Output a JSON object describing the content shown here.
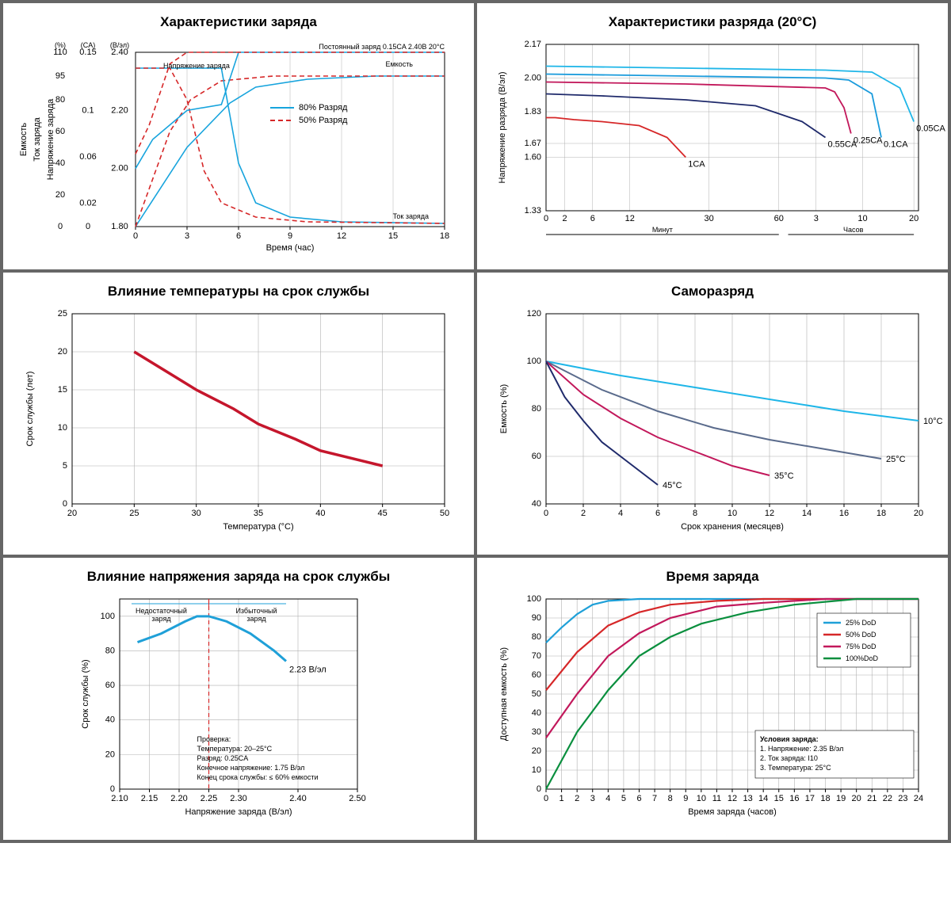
{
  "panels": {
    "charge": {
      "title": "Характеристики заряда",
      "rot_labels": [
        "Емкость",
        "Ток заряда",
        "Напряжение\nзаряда"
      ],
      "note": "Постоянный заряд 0.15CA 2.40В 20°C",
      "xlabel": "Время (час)",
      "xticks": [
        0,
        3,
        6,
        9,
        12,
        15,
        18
      ],
      "yticks_pct": [
        0,
        20,
        40,
        60,
        80,
        95,
        110
      ],
      "y_pct_unit": "(%)",
      "y_ca_unit": "(CA)",
      "y_v_unit": "(В/эл)",
      "yticks_ca": [
        0,
        0.02,
        0.06,
        0.1,
        0.15
      ],
      "yticks_v": [
        1.8,
        2.0,
        2.2,
        2.4
      ],
      "legend": [
        {
          "c": "#17a4dd",
          "dash": "0",
          "t": "80% Разряд"
        },
        {
          "c": "#d62728",
          "dash": "6,4",
          "t": "50% Разряд"
        }
      ],
      "ann": {
        "volt": "Напряжение\nзаряда",
        "cap": "Емкость",
        "cur": "Ток заряда"
      },
      "curves": {
        "cap80": {
          "c": "#17a4dd",
          "pts": [
            [
              0,
              0
            ],
            [
              3,
              50
            ],
            [
              5.5,
              78
            ],
            [
              7,
              88
            ],
            [
              10,
              93
            ],
            [
              14,
              95
            ],
            [
              18,
              95
            ]
          ]
        },
        "cap50": {
          "c": "#d62728",
          "dash": "6,4",
          "pts": [
            [
              0,
              0
            ],
            [
              2,
              60
            ],
            [
              3.2,
              80
            ],
            [
              5,
              92
            ],
            [
              8,
              95
            ],
            [
              18,
              95
            ]
          ]
        },
        "cur80": {
          "c": "#17a4dd",
          "pts": [
            [
              0,
              100
            ],
            [
              3,
              100
            ],
            [
              5,
              100
            ],
            [
              6,
              40
            ],
            [
              7,
              15
            ],
            [
              9,
              6
            ],
            [
              12,
              3
            ],
            [
              18,
              2
            ]
          ]
        },
        "cur50": {
          "c": "#d62728",
          "dash": "6,4",
          "pts": [
            [
              0,
              100
            ],
            [
              2,
              100
            ],
            [
              3,
              80
            ],
            [
              4,
              35
            ],
            [
              5,
              15
            ],
            [
              7,
              6
            ],
            [
              10,
              3
            ],
            [
              18,
              2
            ]
          ]
        },
        "v80": {
          "c": "#17a4dd",
          "pts": [
            [
              0,
              2.0
            ],
            [
              1,
              2.1
            ],
            [
              3,
              2.2
            ],
            [
              5,
              2.22
            ],
            [
              6,
              2.4
            ],
            [
              18,
              2.4
            ]
          ]
        },
        "v50": {
          "c": "#d62728",
          "dash": "6,4",
          "pts": [
            [
              0,
              2.05
            ],
            [
              0.8,
              2.15
            ],
            [
              2,
              2.36
            ],
            [
              3,
              2.4
            ],
            [
              18,
              2.4
            ]
          ]
        }
      }
    },
    "discharge": {
      "title": "Характеристики разряда (20°C)",
      "ylabel": "Напряжение разряда (В/эл)",
      "yticks": [
        1.33,
        1.6,
        1.67,
        1.83,
        2.0,
        2.17
      ],
      "segA_label": "Минут",
      "segB_label": "Часов",
      "ticksA": [
        0,
        2,
        6,
        12,
        30,
        60
      ],
      "ticksB": [
        3,
        10,
        20
      ],
      "curves": [
        {
          "name": "1CA",
          "c": "#d62728",
          "pts": [
            [
              0,
              1.8
            ],
            [
              2,
              1.8
            ],
            [
              6,
              1.79
            ],
            [
              12,
              1.78
            ],
            [
              20,
              1.76
            ],
            [
              26,
              1.7
            ],
            [
              30,
              1.6
            ]
          ]
        },
        {
          "name": "0.55CA",
          "c": "#1f2a6b",
          "pts": [
            [
              0,
              1.92
            ],
            [
              12,
              1.91
            ],
            [
              30,
              1.89
            ],
            [
              45,
              1.86
            ],
            [
              55,
              1.78
            ],
            [
              60,
              1.7
            ]
          ]
        },
        {
          "name": "0.25CA",
          "c": "#c2185b",
          "pts": [
            [
              0,
              1.98
            ],
            [
              30,
              1.97
            ],
            [
              60,
              1.95
            ],
            [
              62,
              1.93
            ],
            [
              64,
              1.85
            ],
            [
              65.5,
              1.72
            ]
          ]
        },
        {
          "name": "0.1CA",
          "c": "#1a9bdc",
          "pts": [
            [
              0,
              2.02
            ],
            [
              30,
              2.01
            ],
            [
              60,
              2.0
            ],
            [
              65,
              1.99
            ],
            [
              70,
              1.92
            ],
            [
              72,
              1.7
            ]
          ]
        },
        {
          "name": "0.05CA",
          "c": "#1fb6e8",
          "pts": [
            [
              0,
              2.06
            ],
            [
              30,
              2.05
            ],
            [
              60,
              2.04
            ],
            [
              70,
              2.03
            ],
            [
              76,
              1.95
            ],
            [
              79,
              1.78
            ]
          ]
        }
      ]
    },
    "templife": {
      "title": "Влияние температуры на срок службы",
      "xlabel": "Температура (°C)",
      "ylabel": "Срок службы (лет)",
      "xticks": [
        20,
        25,
        30,
        35,
        40,
        45,
        50
      ],
      "yticks": [
        0,
        5,
        10,
        15,
        20,
        25
      ],
      "color": "#c5162c",
      "width": 3.5,
      "pts": [
        [
          25,
          20
        ],
        [
          28,
          17
        ],
        [
          30,
          15
        ],
        [
          33,
          12.5
        ],
        [
          35,
          10.5
        ],
        [
          38,
          8.5
        ],
        [
          40,
          7
        ],
        [
          43,
          5.8
        ],
        [
          45,
          5
        ]
      ]
    },
    "selfdis": {
      "title": "Саморазряд",
      "xlabel": "Срок хранения (месяцев)",
      "ylabel": "Емкость (%)",
      "xticks": [
        0,
        2,
        4,
        6,
        8,
        10,
        12,
        14,
        16,
        18,
        20
      ],
      "yticks": [
        40,
        60,
        80,
        100,
        120
      ],
      "curves": [
        {
          "name": "10°C",
          "c": "#1fb6e8",
          "pts": [
            [
              0,
              100
            ],
            [
              4,
              94
            ],
            [
              8,
              89
            ],
            [
              12,
              84
            ],
            [
              16,
              79
            ],
            [
              20,
              75
            ]
          ]
        },
        {
          "name": "25°C",
          "c": "#5a6b8c",
          "pts": [
            [
              0,
              100
            ],
            [
              3,
              88
            ],
            [
              6,
              79
            ],
            [
              9,
              72
            ],
            [
              12,
              67
            ],
            [
              15,
              63
            ],
            [
              18,
              59
            ]
          ]
        },
        {
          "name": "35°C",
          "c": "#c2185b",
          "pts": [
            [
              0,
              100
            ],
            [
              2,
              86
            ],
            [
              4,
              76
            ],
            [
              6,
              68
            ],
            [
              8,
              62
            ],
            [
              10,
              56
            ],
            [
              12,
              52
            ]
          ]
        },
        {
          "name": "45°C",
          "c": "#1f2a6b",
          "pts": [
            [
              0,
              100
            ],
            [
              1,
              85
            ],
            [
              2,
              75
            ],
            [
              3,
              66
            ],
            [
              4,
              60
            ],
            [
              5,
              54
            ],
            [
              6,
              48
            ]
          ]
        }
      ]
    },
    "voltlife": {
      "title": "Влияние напряжения заряда на срок службы",
      "xlabel": "Напряжение заряда (В/эл)",
      "ylabel": "Срок службы (%)",
      "xticks": [
        2.1,
        2.15,
        2.2,
        2.25,
        2.3,
        2.4,
        2.5
      ],
      "yticks": [
        0,
        20,
        40,
        60,
        80,
        100
      ],
      "color": "#1fa0d8",
      "width": 3,
      "pts": [
        [
          2.13,
          85
        ],
        [
          2.17,
          90
        ],
        [
          2.21,
          97
        ],
        [
          2.23,
          100
        ],
        [
          2.25,
          100
        ],
        [
          2.28,
          97
        ],
        [
          2.32,
          90
        ],
        [
          2.36,
          80
        ],
        [
          2.38,
          74
        ]
      ],
      "peak_x": 2.25,
      "low_label": "Недостаточный\nзаряд",
      "high_label": "Избыточный\nзаряд",
      "marker_label": "2.23 В/эл",
      "note": "Проверка:\nТемпература: 20–25°C\nРазряд: 0.25CA\nКонечное напряжение: 1.75 В/эл\nКонец срока службы: ≤ 60% емкости"
    },
    "chargetime": {
      "title": "Время заряда",
      "xlabel": "Время заряда (часов)",
      "ylabel": "Доступная емкость (%)",
      "xticks": [
        0,
        1,
        2,
        3,
        4,
        5,
        6,
        7,
        8,
        9,
        10,
        11,
        12,
        13,
        14,
        15,
        16,
        17,
        18,
        19,
        20,
        21,
        22,
        23,
        24
      ],
      "yticks": [
        0,
        10,
        20,
        30,
        40,
        50,
        60,
        70,
        80,
        90,
        100
      ],
      "curves": [
        {
          "name": "25%",
          "c": "#1fa0d8",
          "pts": [
            [
              0,
              77
            ],
            [
              1,
              85
            ],
            [
              2,
              92
            ],
            [
              3,
              97
            ],
            [
              4,
              99
            ],
            [
              6,
              100
            ],
            [
              24,
              100
            ]
          ]
        },
        {
          "name": "50%",
          "c": "#d62728",
          "pts": [
            [
              0,
              52
            ],
            [
              2,
              72
            ],
            [
              4,
              86
            ],
            [
              6,
              93
            ],
            [
              8,
              97
            ],
            [
              11,
              99
            ],
            [
              14,
              100
            ],
            [
              24,
              100
            ]
          ]
        },
        {
          "name": "75%",
          "c": "#c2185b",
          "pts": [
            [
              0,
              27
            ],
            [
              2,
              50
            ],
            [
              4,
              70
            ],
            [
              6,
              82
            ],
            [
              8,
              90
            ],
            [
              11,
              96
            ],
            [
              14,
              98
            ],
            [
              18,
              100
            ],
            [
              24,
              100
            ]
          ]
        },
        {
          "name": "100%",
          "c": "#0a8f3e",
          "pts": [
            [
              0,
              0
            ],
            [
              2,
              30
            ],
            [
              4,
              52
            ],
            [
              6,
              70
            ],
            [
              8,
              80
            ],
            [
              10,
              87
            ],
            [
              13,
              93
            ],
            [
              16,
              97
            ],
            [
              20,
              100
            ],
            [
              24,
              100
            ]
          ]
        }
      ],
      "legend": [
        {
          "c": "#1fa0d8",
          "t": "25%  DoD"
        },
        {
          "c": "#d62728",
          "t": "50%  DoD"
        },
        {
          "c": "#c2185b",
          "t": "75%  DoD"
        },
        {
          "c": "#0a8f3e",
          "t": "100%DoD"
        }
      ],
      "note_title": "Условия заряда:",
      "note_lines": [
        "1. Напряжение: 2.35 В/эл",
        "2. Ток заряда: I10",
        "3. Температура: 25°C"
      ]
    }
  },
  "grid_color": "#b0b0b0",
  "axis_color": "#000"
}
